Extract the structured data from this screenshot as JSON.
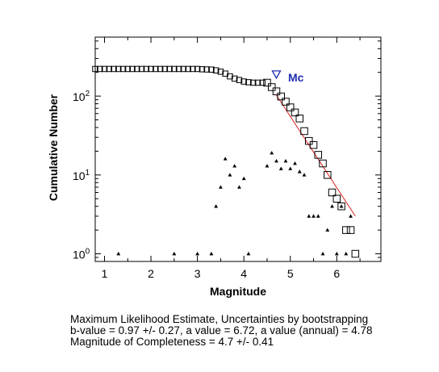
{
  "chart_data": {
    "type": "scatter",
    "title": "",
    "xlabel": "Magnitude",
    "ylabel": "Cumulative Number",
    "xlim": [
      0.8,
      6.95
    ],
    "ylim": [
      0.8,
      560
    ],
    "yscale": "log",
    "grid": false,
    "x_ticks": [
      {
        "value": 1,
        "label": "1"
      },
      {
        "value": 2,
        "label": "2"
      },
      {
        "value": 3,
        "label": "3"
      },
      {
        "value": 4,
        "label": "4"
      },
      {
        "value": 5,
        "label": "5"
      },
      {
        "value": 6,
        "label": "6"
      }
    ],
    "y_ticks": [
      {
        "value": 1,
        "base": "10",
        "exp": "0"
      },
      {
        "value": 10,
        "base": "10",
        "exp": "1"
      },
      {
        "value": 100,
        "base": "10",
        "exp": "2"
      }
    ],
    "series": [
      {
        "marker": "open-square",
        "color": "#000000",
        "x": [
          0.8,
          0.9,
          1.0,
          1.1,
          1.2,
          1.3,
          1.4,
          1.5,
          1.6,
          1.7,
          1.8,
          1.9,
          2.0,
          2.1,
          2.2,
          2.3,
          2.4,
          2.5,
          2.6,
          2.7,
          2.8,
          2.9,
          3.0,
          3.1,
          3.2,
          3.3,
          3.4,
          3.5,
          3.6,
          3.7,
          3.8,
          3.9,
          4.0,
          4.1,
          4.2,
          4.3,
          4.4,
          4.5,
          4.6,
          4.7,
          4.8,
          4.9,
          5.0,
          5.1,
          5.2,
          5.3,
          5.4,
          5.5,
          5.6,
          5.7,
          5.8,
          5.9,
          6.0,
          6.1,
          6.2,
          6.3,
          6.4
        ],
        "y": [
          221,
          221,
          221,
          221,
          221,
          221,
          221,
          221,
          221,
          221,
          221,
          221,
          221,
          221,
          221,
          221,
          221,
          221,
          221,
          221,
          221,
          221,
          221,
          219,
          218,
          217,
          212,
          204,
          193,
          178,
          167,
          160,
          153,
          150,
          148,
          148,
          148,
          148,
          130,
          115,
          99,
          85,
          72,
          62,
          52,
          36,
          27,
          24,
          18,
          14,
          10,
          6,
          5,
          4,
          2,
          2,
          1
        ]
      },
      {
        "marker": "filled-triangle",
        "color": "#000000",
        "x": [
          1.3,
          2.5,
          3.0,
          3.3,
          3.4,
          3.5,
          3.6,
          3.7,
          3.8,
          3.9,
          4.0,
          4.1,
          4.5,
          4.6,
          4.7,
          4.8,
          4.9,
          5.0,
          5.1,
          5.2,
          5.3,
          5.4,
          5.5,
          5.6,
          5.7,
          5.8,
          5.9,
          6.0,
          6.1,
          6.2,
          6.3
        ],
        "y": [
          1,
          1,
          1,
          1,
          4,
          7,
          16,
          10,
          13,
          7,
          9,
          1,
          13,
          19,
          15,
          12,
          15,
          12,
          14,
          11,
          10,
          3,
          3,
          3,
          1,
          2,
          4,
          1,
          4,
          1,
          3
        ]
      },
      {
        "marker": "line",
        "color": "#e02020",
        "x": [
          4.7,
          6.4
        ],
        "y": [
          103,
          3
        ]
      },
      {
        "marker": "open-down-triangle",
        "color": "#1f2fb0",
        "x": [
          4.7
        ],
        "y": [
          190
        ]
      }
    ],
    "annotations": [
      {
        "text": "Mc",
        "x": 4.9,
        "y": 190,
        "color": "#1f2fb0"
      }
    ]
  },
  "caption": {
    "line1": "Maximum Likelihood Estimate, Uncertainties by bootstrapping",
    "line2": "b-value = 0.97 +/- 0.27,  a value = 6.72,  a value (annual) = 4.78",
    "line3": "Magnitude of Completeness = 4.7 +/- 0.41"
  }
}
